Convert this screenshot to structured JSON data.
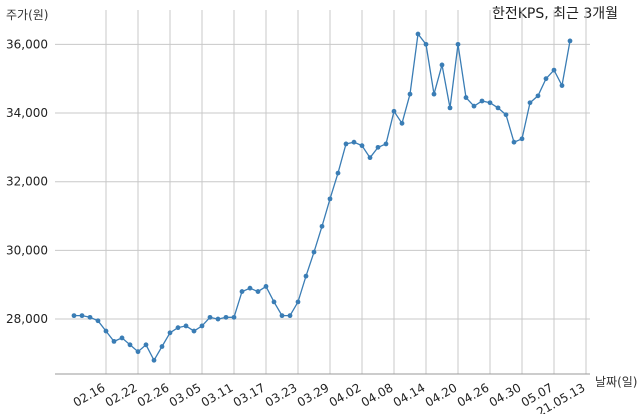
{
  "chart_data": {
    "type": "line",
    "title": "한전KPS, 최근 3개월",
    "xlabel": "날짜(일)",
    "ylabel": "주가(원)",
    "ylim": [
      26400,
      37000
    ],
    "grid": true,
    "line_color": "#3a7db5",
    "y_ticks": [
      {
        "value": 28000,
        "label": "28,000"
      },
      {
        "value": 30000,
        "label": "30,000"
      },
      {
        "value": 32000,
        "label": "32,000"
      },
      {
        "value": 34000,
        "label": "34,000"
      },
      {
        "value": 36000,
        "label": "36,000"
      }
    ],
    "x_ticks": [
      {
        "index": 4,
        "label": "02.16"
      },
      {
        "index": 8,
        "label": "02.22"
      },
      {
        "index": 12,
        "label": "02.26"
      },
      {
        "index": 16,
        "label": "03.05"
      },
      {
        "index": 20,
        "label": "03.11"
      },
      {
        "index": 24,
        "label": "03.17"
      },
      {
        "index": 28,
        "label": "03.23"
      },
      {
        "index": 32,
        "label": "03.29"
      },
      {
        "index": 36,
        "label": "04.02"
      },
      {
        "index": 40,
        "label": "04.08"
      },
      {
        "index": 44,
        "label": "04.14"
      },
      {
        "index": 48,
        "label": "04.20"
      },
      {
        "index": 52,
        "label": "04.26"
      },
      {
        "index": 56,
        "label": "04.30"
      },
      {
        "index": 60,
        "label": "05.07"
      },
      {
        "index": 64,
        "label": "21.05.13"
      }
    ],
    "values": [
      28100,
      28100,
      28050,
      27950,
      27650,
      27350,
      27450,
      27250,
      27050,
      27250,
      26800,
      27200,
      27600,
      27750,
      27800,
      27650,
      27800,
      28050,
      28000,
      28050,
      28050,
      28800,
      28900,
      28800,
      28950,
      28500,
      28100,
      28100,
      28500,
      29250,
      29950,
      30700,
      31500,
      32250,
      33100,
      33150,
      33050,
      32700,
      33000,
      33100,
      34050,
      33700,
      34550,
      36300,
      36000,
      34550,
      35400,
      34150,
      36000,
      34450,
      34200,
      34350,
      34300,
      34150,
      33950,
      33150,
      33250,
      34300,
      34500,
      35000,
      35250,
      34800,
      36100
    ]
  }
}
